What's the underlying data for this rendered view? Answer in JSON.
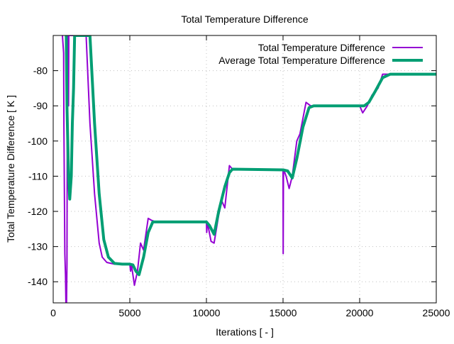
{
  "chart_data": {
    "type": "line",
    "title": "Total Temperature Difference",
    "xlabel": "Iterations [ - ]",
    "ylabel": "Total Temperature Difference [ K ]",
    "xlim": [
      0,
      25000
    ],
    "ylim": [
      -146,
      -70
    ],
    "xticks": [
      0,
      5000,
      10000,
      15000,
      20000,
      25000
    ],
    "yticks": [
      -140,
      -130,
      -120,
      -110,
      -100,
      -90,
      -80
    ],
    "grid": true,
    "legend_position": "top-right",
    "series": [
      {
        "name": "Total Temperature Difference",
        "color": "#9400d3",
        "width": 2,
        "points": [
          [
            600,
            -70
          ],
          [
            680,
            -75
          ],
          [
            700,
            -96
          ],
          [
            720,
            -110
          ],
          [
            760,
            -132
          ],
          [
            800,
            -138
          ],
          [
            830,
            -146
          ],
          [
            870,
            -146
          ],
          [
            900,
            -135
          ],
          [
            930,
            -70
          ],
          [
            960,
            -70
          ],
          [
            980,
            -80
          ],
          [
            1000,
            -90
          ],
          [
            1020,
            -70
          ],
          [
            2150,
            -70
          ],
          [
            2400,
            -95
          ],
          [
            2700,
            -115
          ],
          [
            3000,
            -129
          ],
          [
            3200,
            -133
          ],
          [
            3500,
            -134.5
          ],
          [
            4000,
            -135
          ],
          [
            5000,
            -135
          ],
          [
            5050,
            -137
          ],
          [
            5100,
            -135
          ],
          [
            5300,
            -141
          ],
          [
            5500,
            -137
          ],
          [
            5700,
            -129
          ],
          [
            5900,
            -131
          ],
          [
            6200,
            -122
          ],
          [
            6400,
            -122.5
          ],
          [
            6700,
            -123
          ],
          [
            10000,
            -123
          ],
          [
            10020,
            -126
          ],
          [
            10060,
            -123
          ],
          [
            10300,
            -128.5
          ],
          [
            10500,
            -129
          ],
          [
            10800,
            -121
          ],
          [
            11000,
            -117
          ],
          [
            11200,
            -119
          ],
          [
            11500,
            -107
          ],
          [
            11700,
            -108
          ],
          [
            12500,
            -108.2
          ],
          [
            15000,
            -108.2
          ],
          [
            15010,
            -132
          ],
          [
            15030,
            -108
          ],
          [
            15200,
            -110
          ],
          [
            15400,
            -113.5
          ],
          [
            15600,
            -110
          ],
          [
            15900,
            -100
          ],
          [
            16100,
            -98
          ],
          [
            16500,
            -89
          ],
          [
            16800,
            -90
          ],
          [
            20000,
            -90
          ],
          [
            20200,
            -92
          ],
          [
            20500,
            -90
          ],
          [
            20800,
            -87
          ],
          [
            21200,
            -85
          ],
          [
            21500,
            -81
          ],
          [
            22000,
            -81
          ],
          [
            25000,
            -81
          ]
        ]
      },
      {
        "name": "Average Total Temperature Difference",
        "color": "#009e73",
        "width": 4,
        "points": [
          [
            850,
            -70
          ],
          [
            900,
            -90
          ],
          [
            950,
            -100
          ],
          [
            1000,
            -110
          ],
          [
            1080,
            -116.5
          ],
          [
            1180,
            -110
          ],
          [
            1250,
            -95
          ],
          [
            1330,
            -85
          ],
          [
            1400,
            -70
          ],
          [
            2400,
            -70
          ],
          [
            2700,
            -95
          ],
          [
            3000,
            -115
          ],
          [
            3300,
            -128
          ],
          [
            3600,
            -133
          ],
          [
            4000,
            -134.8
          ],
          [
            4500,
            -135
          ],
          [
            5000,
            -135
          ],
          [
            5200,
            -135.2
          ],
          [
            5400,
            -137
          ],
          [
            5600,
            -138
          ],
          [
            5900,
            -133
          ],
          [
            6200,
            -126
          ],
          [
            6500,
            -123
          ],
          [
            10000,
            -123
          ],
          [
            10200,
            -124
          ],
          [
            10500,
            -126.5
          ],
          [
            10800,
            -120
          ],
          [
            11200,
            -113
          ],
          [
            11500,
            -109
          ],
          [
            11700,
            -108
          ],
          [
            15000,
            -108.2
          ],
          [
            15300,
            -108.5
          ],
          [
            15600,
            -110.5
          ],
          [
            15900,
            -105
          ],
          [
            16300,
            -96
          ],
          [
            16700,
            -90.5
          ],
          [
            17000,
            -90
          ],
          [
            20000,
            -90
          ],
          [
            20300,
            -90
          ],
          [
            20600,
            -89
          ],
          [
            21000,
            -86
          ],
          [
            21500,
            -82
          ],
          [
            22000,
            -81
          ],
          [
            25000,
            -81
          ]
        ]
      }
    ]
  }
}
